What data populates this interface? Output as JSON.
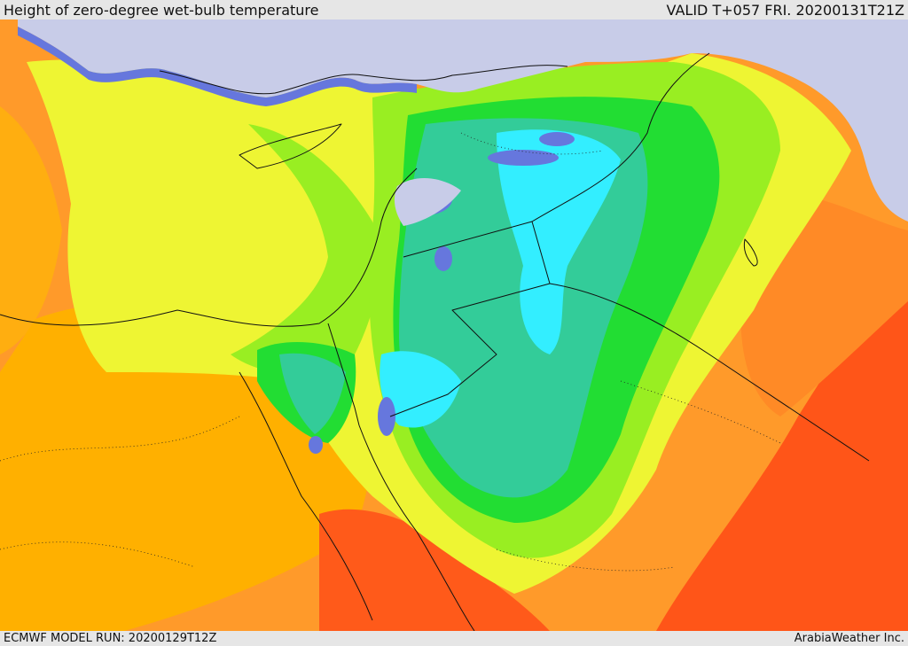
{
  "header": {
    "title": "Height of zero-degree wet-bulb temperature",
    "valid": "VALID T+057 FRI. 20200131T21Z"
  },
  "footer": {
    "model_run": "ECMWF MODEL RUN: 20200129T12Z",
    "credit": "ArabiaWeather Inc."
  },
  "map": {
    "colors": {
      "snow_lavender": "#c8cce8",
      "blue": "#6677dd",
      "cyan": "#33eeff",
      "teal": "#33cc99",
      "green": "#22dd33",
      "lime": "#99ee22",
      "yellow": "#eef533",
      "amber": "#ffb000",
      "orange": "#ff8c2a",
      "red_orange": "#ff5518",
      "borders": "#111111"
    }
  }
}
